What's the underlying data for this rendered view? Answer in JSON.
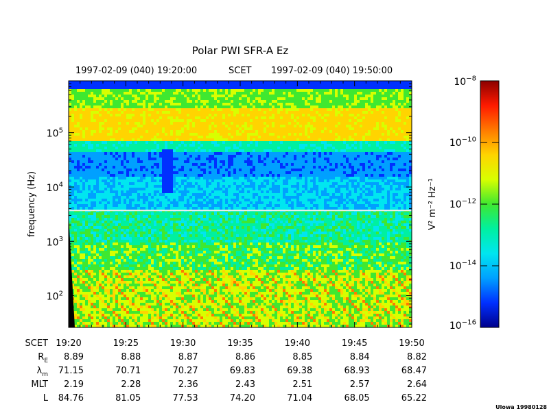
{
  "title": "Polar PWI SFR-A Ez",
  "header": {
    "start": "1997-02-09 (040) 19:20:00",
    "mid": "SCET",
    "end": "1997-02-09 (040) 19:50:00"
  },
  "credit": "Ulowa 19980128",
  "colors": {
    "white_line": "#f0f0f0",
    "colormap": [
      "#8b0000",
      "#ff1a00",
      "#ff7a00",
      "#ffd400",
      "#d8ff00",
      "#3fe830",
      "#00f0a0",
      "#00e6f0",
      "#00a0ff",
      "#0030ff",
      "#00008b"
    ]
  },
  "chart_data": {
    "type": "heatmap",
    "title": "Polar PWI SFR-A Ez",
    "xlabel": "SCET",
    "ylabel": "frequency (Hz)",
    "y_scale": "log",
    "xlim": [
      "19:20",
      "19:50"
    ],
    "ylim": [
      26,
      900000
    ],
    "x_ticks": [
      "19:20",
      "19:25",
      "19:30",
      "19:35",
      "19:40",
      "19:45",
      "19:50"
    ],
    "y_ticks": [
      {
        "base": "10",
        "exp": "2"
      },
      {
        "base": "10",
        "exp": "3"
      },
      {
        "base": "10",
        "exp": "4"
      },
      {
        "base": "10",
        "exp": "5"
      }
    ],
    "colorbar": {
      "label": "V² m⁻² Hz⁻¹",
      "scale": "log",
      "range": [
        1e-16,
        1e-08
      ],
      "ticks": [
        {
          "base": "10",
          "exp": "−8"
        },
        {
          "base": "10",
          "exp": "−10"
        },
        {
          "base": "10",
          "exp": "−12"
        },
        {
          "base": "10",
          "exp": "−14"
        },
        {
          "base": "10",
          "exp": "−16"
        }
      ]
    },
    "features": [
      {
        "name": "bright band",
        "freq_hz": [
          60000,
          400000
        ],
        "log_intensity": -11.2
      },
      {
        "name": "dark band",
        "freq_hz": [
          14000,
          45000
        ],
        "log_intensity": -15.0
      },
      {
        "name": "white line",
        "freq_hz": 3700
      },
      {
        "name": "low-frequency emission",
        "freq_hz": [
          26,
          300
        ],
        "log_intensity": -11.8
      }
    ],
    "ephemeris": {
      "rows": [
        {
          "label": "SCET",
          "values": [
            "19:20",
            "19:25",
            "19:30",
            "19:35",
            "19:40",
            "19:45",
            "19:50"
          ]
        },
        {
          "label": "R",
          "sub": "E",
          "values": [
            "8.89",
            "8.88",
            "8.87",
            "8.86",
            "8.85",
            "8.84",
            "8.82"
          ]
        },
        {
          "label": "λ",
          "sub": "m",
          "values": [
            "71.15",
            "70.71",
            "70.27",
            "69.83",
            "69.38",
            "68.93",
            "68.47"
          ]
        },
        {
          "label": "MLT",
          "sub": "",
          "values": [
            "2.19",
            "2.28",
            "2.36",
            "2.43",
            "2.51",
            "2.57",
            "2.64"
          ]
        },
        {
          "label": "L",
          "sub": "",
          "values": [
            "84.76",
            "81.05",
            "77.53",
            "74.20",
            "71.04",
            "68.05",
            "65.22"
          ]
        }
      ]
    }
  }
}
